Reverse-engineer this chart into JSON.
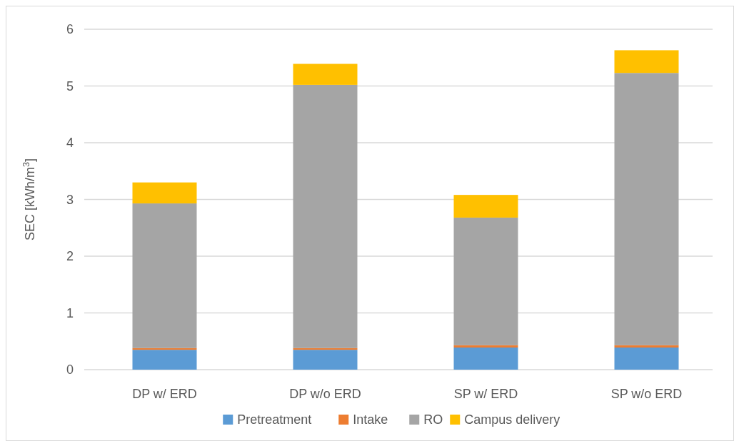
{
  "chart_data": {
    "type": "bar",
    "stacked": true,
    "ylabel": "SEC [kWh/m$^{3}$]",
    "categories": [
      "DP w/ ERD",
      "DP w/o ERD",
      "SP w/ ERD",
      "SP w/o ERD"
    ],
    "series": [
      {
        "name": "Pretreatment",
        "color": "#5b9bd5",
        "values": [
          0.35,
          0.35,
          0.39,
          0.39
        ]
      },
      {
        "name": "Intake",
        "color": "#ed7d31",
        "values": [
          0.03,
          0.03,
          0.04,
          0.04
        ]
      },
      {
        "name": "RO",
        "color": "#a5a5a5",
        "values": [
          2.55,
          4.64,
          2.25,
          4.8
        ]
      },
      {
        "name": "Campus delivery",
        "color": "#ffc000",
        "values": [
          0.37,
          0.37,
          0.4,
          0.4
        ]
      }
    ],
    "ylim": [
      0,
      6
    ],
    "yticks": [
      0,
      1,
      2,
      3,
      4,
      5,
      6
    ],
    "grid": "y",
    "legend": "bottom"
  }
}
